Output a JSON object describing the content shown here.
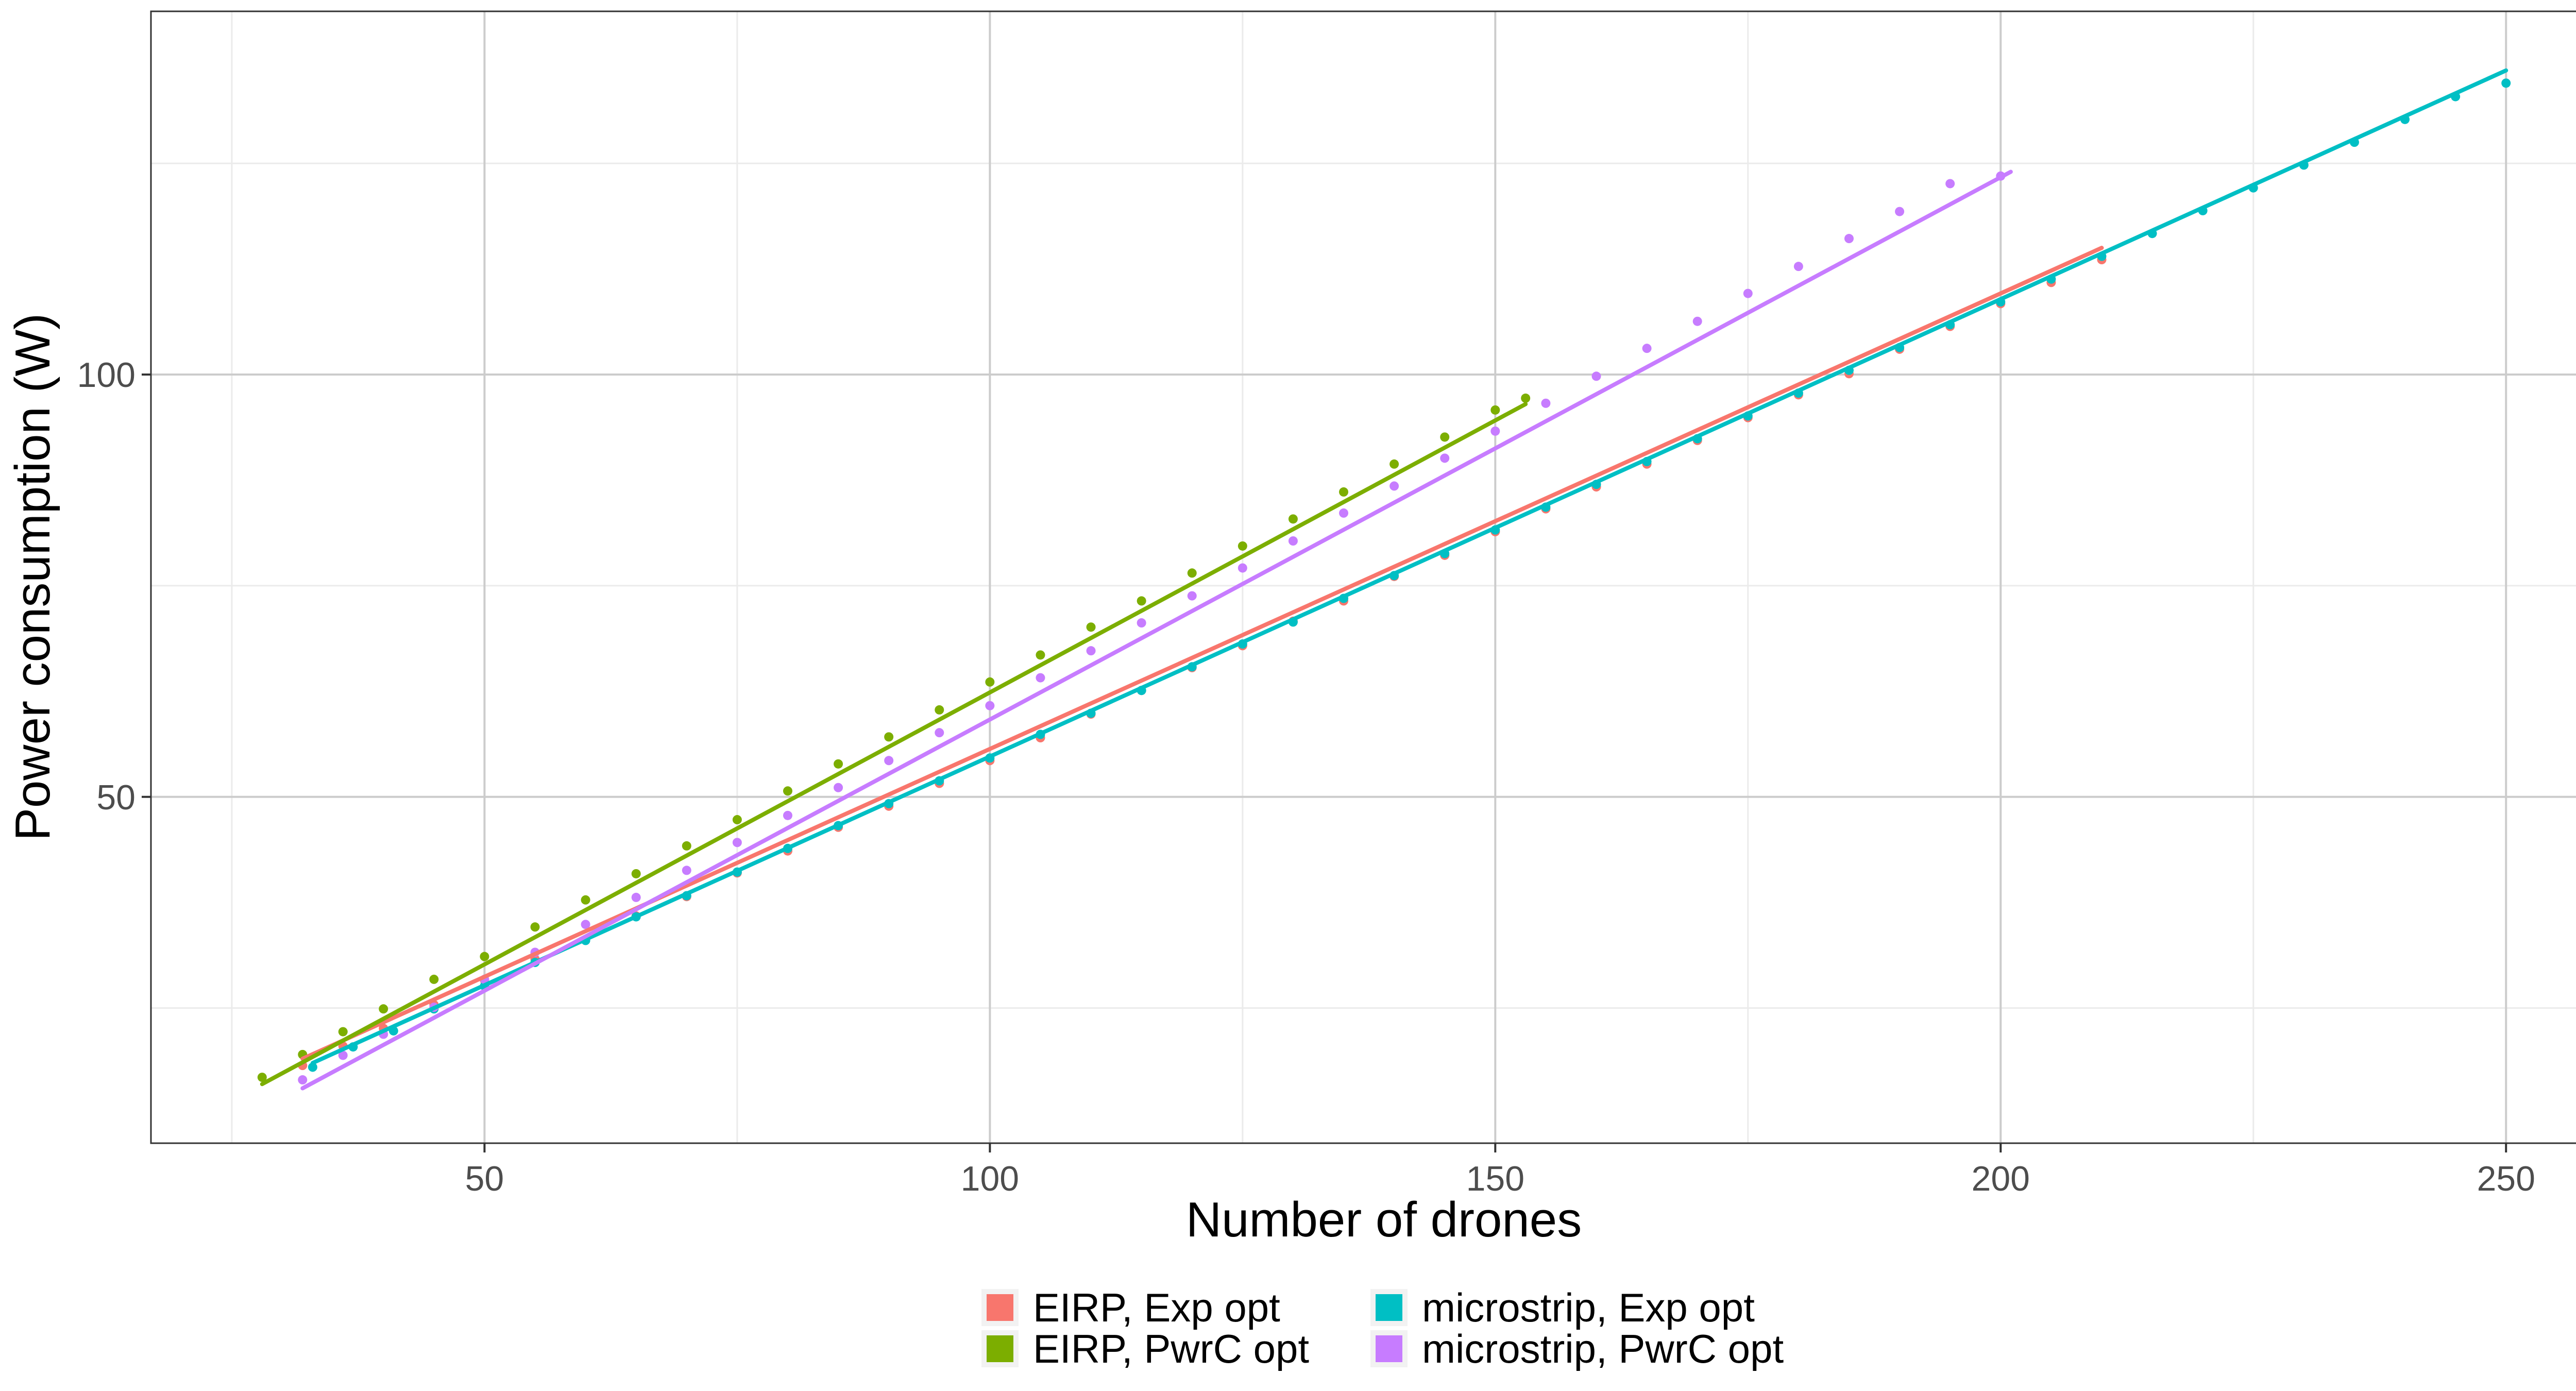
{
  "chart_data": {
    "type": "scatter",
    "title": "",
    "xlabel": "Number of drones",
    "ylabel": "Power consumption (W)",
    "xlim": [
      17,
      261
    ],
    "ylim": [
      9,
      143
    ],
    "x_ticks": [
      50,
      100,
      150,
      200,
      250
    ],
    "x_tick_labels": [
      "50",
      "100",
      "150",
      "200",
      "250"
    ],
    "y_ticks": [
      50,
      100
    ],
    "y_tick_labels": [
      "50",
      "100"
    ],
    "grid": true,
    "legend_position": "bottom",
    "series": [
      {
        "name": "EIRP, Exp opt",
        "color": "#F8766D",
        "fit": [
          [
            32,
            19.0
          ],
          [
            210,
            115.0
          ]
        ],
        "points": [
          [
            32,
            18.2
          ],
          [
            36,
            20.5
          ],
          [
            40,
            22.6
          ],
          [
            45,
            25.4
          ],
          [
            50,
            28.3
          ],
          [
            55,
            30.8
          ],
          [
            60,
            33.1
          ],
          [
            65,
            35.9
          ],
          [
            70,
            38.2
          ],
          [
            75,
            41.0
          ],
          [
            80,
            43.6
          ],
          [
            85,
            46.4
          ],
          [
            90,
            48.9
          ],
          [
            95,
            51.6
          ],
          [
            100,
            54.3
          ],
          [
            105,
            57.0
          ],
          [
            110,
            59.8
          ],
          [
            115,
            62.6
          ],
          [
            120,
            65.3
          ],
          [
            125,
            67.9
          ],
          [
            130,
            70.8
          ],
          [
            135,
            73.2
          ],
          [
            140,
            76.1
          ],
          [
            145,
            78.6
          ],
          [
            150,
            81.4
          ],
          [
            155,
            84.1
          ],
          [
            160,
            86.7
          ],
          [
            165,
            89.4
          ],
          [
            170,
            92.2
          ],
          [
            175,
            94.9
          ],
          [
            180,
            97.6
          ],
          [
            185,
            100.1
          ],
          [
            190,
            103.0
          ],
          [
            195,
            105.7
          ],
          [
            200,
            108.4
          ],
          [
            205,
            110.9
          ],
          [
            210,
            113.6
          ]
        ]
      },
      {
        "name": "EIRP, PwrC opt",
        "color": "#7CAE00",
        "fit": [
          [
            28,
            16.0
          ],
          [
            153,
            96.5
          ]
        ],
        "points": [
          [
            28,
            16.8
          ],
          [
            32,
            19.5
          ],
          [
            36,
            22.2
          ],
          [
            40,
            24.9
          ],
          [
            45,
            28.4
          ],
          [
            50,
            31.1
          ],
          [
            55,
            34.6
          ],
          [
            60,
            37.8
          ],
          [
            65,
            40.9
          ],
          [
            70,
            44.2
          ],
          [
            75,
            47.3
          ],
          [
            80,
            50.7
          ],
          [
            85,
            53.9
          ],
          [
            90,
            57.1
          ],
          [
            95,
            60.3
          ],
          [
            100,
            63.6
          ],
          [
            105,
            66.8
          ],
          [
            110,
            70.1
          ],
          [
            115,
            73.2
          ],
          [
            120,
            76.5
          ],
          [
            125,
            79.7
          ],
          [
            130,
            82.9
          ],
          [
            135,
            86.1
          ],
          [
            140,
            89.4
          ],
          [
            145,
            92.6
          ],
          [
            150,
            95.8
          ],
          [
            153,
            97.2
          ]
        ]
      },
      {
        "name": "microstrip, Exp opt",
        "color": "#00BFC4",
        "fit": [
          [
            33,
            18.5
          ],
          [
            250,
            136.0
          ]
        ],
        "points": [
          [
            33,
            18.0
          ],
          [
            37,
            20.4
          ],
          [
            41,
            22.3
          ],
          [
            45,
            24.9
          ],
          [
            50,
            27.6
          ],
          [
            55,
            30.4
          ],
          [
            60,
            33.0
          ],
          [
            65,
            35.8
          ],
          [
            70,
            38.3
          ],
          [
            75,
            41.1
          ],
          [
            80,
            43.9
          ],
          [
            85,
            46.6
          ],
          [
            90,
            49.2
          ],
          [
            95,
            51.9
          ],
          [
            100,
            54.6
          ],
          [
            105,
            57.4
          ],
          [
            110,
            59.9
          ],
          [
            115,
            62.6
          ],
          [
            120,
            65.4
          ],
          [
            125,
            68.1
          ],
          [
            130,
            70.7
          ],
          [
            135,
            73.5
          ],
          [
            140,
            76.2
          ],
          [
            145,
            78.8
          ],
          [
            150,
            81.6
          ],
          [
            155,
            84.3
          ],
          [
            160,
            87.0
          ],
          [
            165,
            89.7
          ],
          [
            170,
            92.4
          ],
          [
            175,
            95.1
          ],
          [
            180,
            97.8
          ],
          [
            185,
            100.5
          ],
          [
            190,
            103.2
          ],
          [
            195,
            105.9
          ],
          [
            200,
            108.6
          ],
          [
            205,
            111.3
          ],
          [
            210,
            114.0
          ],
          [
            215,
            116.7
          ],
          [
            220,
            119.4
          ],
          [
            225,
            122.1
          ],
          [
            230,
            124.8
          ],
          [
            235,
            127.5
          ],
          [
            240,
            130.2
          ],
          [
            245,
            132.9
          ],
          [
            250,
            134.5
          ]
        ]
      },
      {
        "name": "microstrip, PwrC opt",
        "color": "#C77CFF",
        "fit": [
          [
            32,
            15.5
          ],
          [
            201,
            124.0
          ]
        ],
        "points": [
          [
            32,
            16.5
          ],
          [
            36,
            19.4
          ],
          [
            40,
            21.9
          ],
          [
            45,
            25.1
          ],
          [
            50,
            28.4
          ],
          [
            55,
            31.6
          ],
          [
            60,
            34.9
          ],
          [
            65,
            38.1
          ],
          [
            70,
            41.3
          ],
          [
            75,
            44.6
          ],
          [
            80,
            47.8
          ],
          [
            85,
            51.1
          ],
          [
            90,
            54.3
          ],
          [
            95,
            57.6
          ],
          [
            100,
            60.8
          ],
          [
            105,
            64.1
          ],
          [
            110,
            67.3
          ],
          [
            115,
            70.6
          ],
          [
            120,
            73.8
          ],
          [
            125,
            77.1
          ],
          [
            130,
            80.3
          ],
          [
            135,
            83.6
          ],
          [
            140,
            86.8
          ],
          [
            145,
            90.1
          ],
          [
            150,
            93.3
          ],
          [
            155,
            96.6
          ],
          [
            160,
            99.8
          ],
          [
            165,
            103.1
          ],
          [
            170,
            106.3
          ],
          [
            175,
            109.6
          ],
          [
            180,
            112.8
          ],
          [
            185,
            116.1
          ],
          [
            190,
            119.3
          ],
          [
            195,
            122.6
          ],
          [
            200,
            123.5
          ]
        ]
      }
    ]
  }
}
